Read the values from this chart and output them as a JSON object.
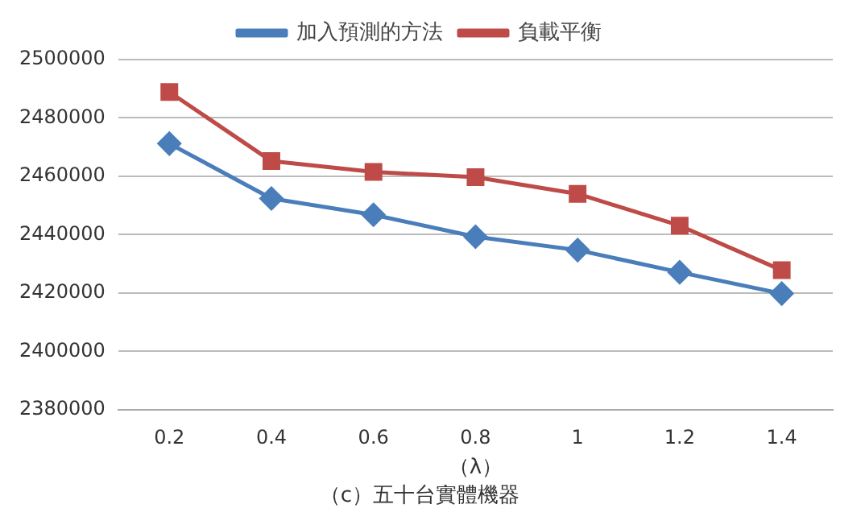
{
  "chart_data": {
    "type": "line",
    "title": "（c）五十台實體機器",
    "xlabel": "（λ）",
    "categories": [
      "0.2",
      "0.4",
      "0.6",
      "0.8",
      "1",
      "1.2",
      "1.4"
    ],
    "series": [
      {
        "name": "加入預測的方法",
        "color": "#4a7ebb",
        "marker": "diamond",
        "values": [
          2471200,
          2452400,
          2446800,
          2439300,
          2434700,
          2427100,
          2419800
        ]
      },
      {
        "name": "負載平衡",
        "color": "#be4b48",
        "marker": "square",
        "values": [
          2488900,
          2465200,
          2461500,
          2459700,
          2454000,
          2443100,
          2427800
        ]
      }
    ],
    "ylim": [
      2380000,
      2500000
    ],
    "yticks": [
      2380000,
      2400000,
      2420000,
      2440000,
      2460000,
      2480000,
      2500000
    ],
    "grid": "y",
    "legend": "top",
    "line_style": "solid"
  }
}
